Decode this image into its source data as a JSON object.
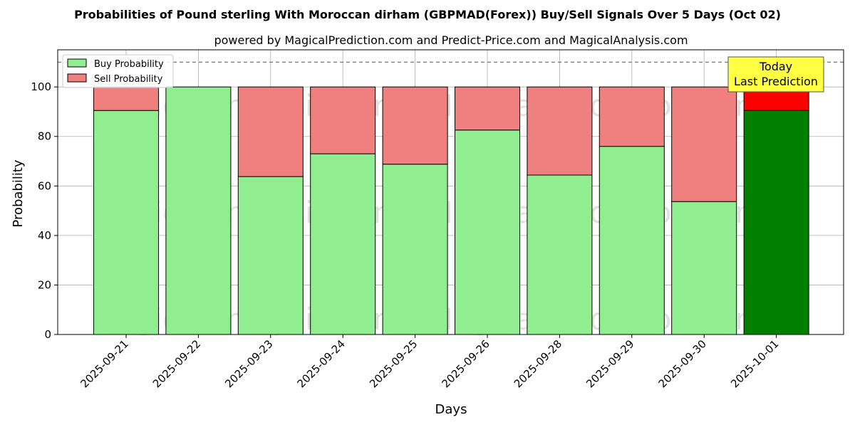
{
  "chart_data": {
    "type": "bar",
    "stacked": true,
    "title": "Probabilities of Pound sterling With Moroccan dirham (GBPMAD(Forex)) Buy/Sell Signals Over 5 Days (Oct 02)",
    "subtitle": "powered by MagicalPrediction.com and Predict-Price.com and MagicalAnalysis.com",
    "xlabel": "Days",
    "ylabel": "Probability",
    "ylim": [
      0,
      115
    ],
    "yticks": [
      0,
      20,
      40,
      60,
      80,
      100
    ],
    "grid": true,
    "legend_position": "top-left",
    "reference_line": 110,
    "categories": [
      "2025-09-21",
      "2025-09-22",
      "2025-09-23",
      "2025-09-24",
      "2025-09-25",
      "2025-09-26",
      "2025-09-28",
      "2025-09-29",
      "2025-09-30",
      "2025-10-01"
    ],
    "series": [
      {
        "name": "Buy Probability",
        "color": "#90ee90",
        "highlight_color": "#008000",
        "values": [
          90.5,
          100,
          63.8,
          73.0,
          68.8,
          82.6,
          64.4,
          76.0,
          53.7,
          90.5
        ]
      },
      {
        "name": "Sell Probability",
        "color": "#f08080",
        "highlight_color": "#ff0000",
        "values": [
          9.5,
          0,
          36.2,
          27.0,
          31.2,
          17.4,
          35.6,
          24.0,
          46.3,
          9.5
        ]
      }
    ],
    "highlight_index": 9,
    "annotation": {
      "line1": "Today",
      "line2": "Last Prediction",
      "background": "#ffff44"
    },
    "watermarks": [
      "MagicalAnalysis.com",
      "MagicalPrediction.com"
    ]
  }
}
